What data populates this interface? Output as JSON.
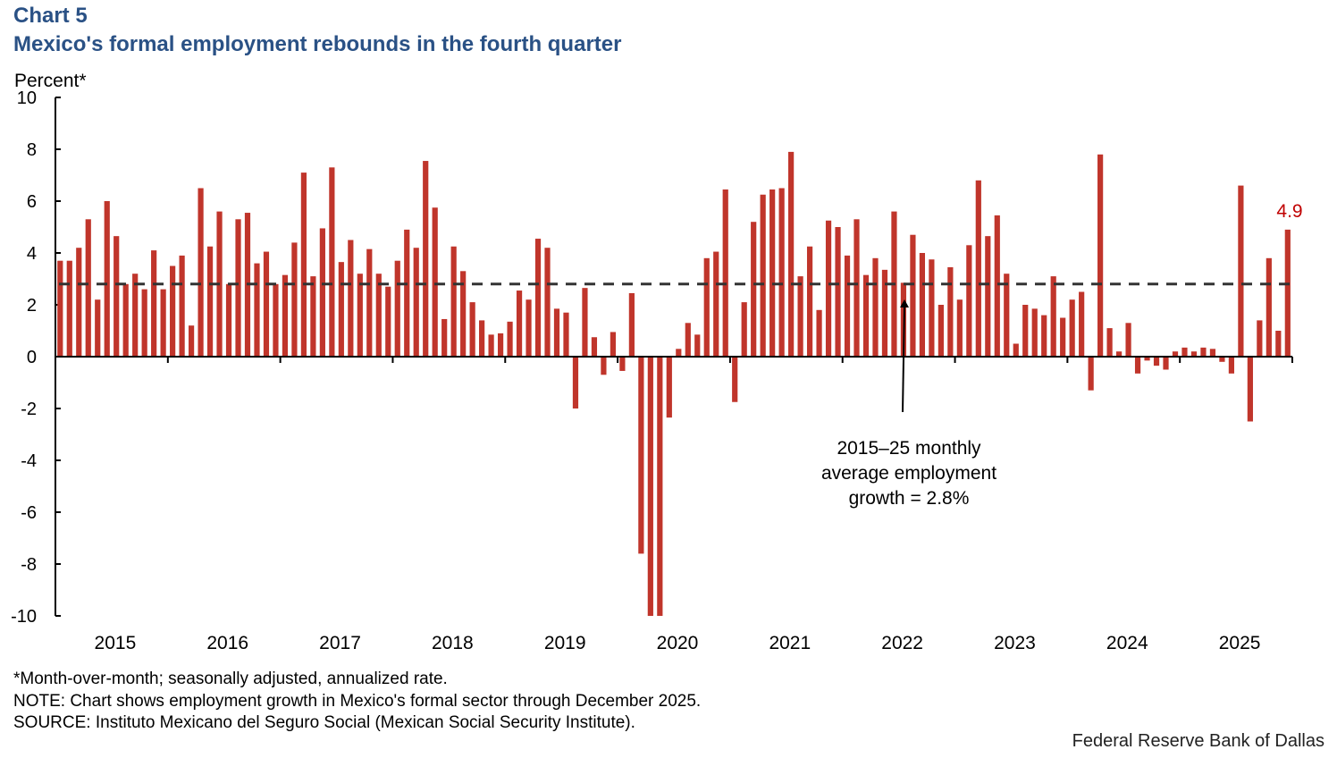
{
  "chart_label": "Chart 5",
  "title": "Mexico's formal employment rebounds in the fourth quarter",
  "notes": [
    "*Month-over-month; seasonally adjusted, annualized rate.",
    "NOTE: Chart shows employment growth in Mexico's formal sector through December 2025.",
    "SOURCE: Instituto Mexicano del Seguro Social (Mexican Social Security Institute)."
  ],
  "credit": "Federal Reserve Bank of Dallas",
  "chart_data": {
    "type": "bar",
    "ylabel": "Percent*",
    "ylim": [
      -10,
      10
    ],
    "yticks": [
      "10",
      "8",
      "6",
      "4",
      "2",
      "0",
      "-2",
      "-4",
      "-6",
      "-8",
      "-10"
    ],
    "xtick_labels": [
      "2015",
      "2016",
      "2017",
      "2018",
      "2019",
      "2020",
      "2021",
      "2022",
      "2023",
      "2024",
      "2025"
    ],
    "frequency": "monthly, Jan 2015 – Dec 2025",
    "bar_color": "#c0352b",
    "reference_line": {
      "value": 2.8,
      "style": "dashed",
      "color": "#333333"
    },
    "annotation": [
      "2015–25 monthly",
      "average employment",
      "growth = 2.8%"
    ],
    "last_value_label": {
      "text": "4.9",
      "color": "#c00000"
    },
    "values": [
      3.7,
      3.7,
      4.2,
      5.3,
      2.2,
      6.0,
      4.65,
      2.8,
      3.2,
      2.6,
      4.1,
      2.6,
      3.5,
      3.9,
      1.2,
      6.5,
      4.25,
      5.6,
      2.8,
      5.3,
      5.55,
      3.6,
      4.05,
      2.8,
      3.15,
      4.4,
      7.1,
      3.1,
      4.95,
      7.3,
      3.65,
      4.5,
      3.2,
      4.15,
      3.2,
      2.7,
      3.7,
      4.9,
      4.2,
      7.55,
      5.75,
      1.45,
      4.25,
      3.3,
      2.1,
      1.4,
      0.85,
      0.9,
      1.35,
      2.55,
      2.2,
      4.55,
      4.2,
      1.85,
      1.7,
      -2.0,
      2.65,
      0.75,
      -0.7,
      0.95,
      -0.55,
      2.45,
      -7.6,
      -10,
      -10,
      -2.35,
      0.3,
      1.3,
      0.85,
      3.8,
      4.05,
      6.45,
      -1.75,
      2.1,
      5.2,
      6.25,
      6.45,
      6.5,
      7.9,
      3.1,
      4.25,
      1.8,
      5.25,
      5.0,
      3.9,
      5.3,
      3.15,
      3.8,
      3.35,
      5.6,
      2.85,
      4.7,
      4.0,
      3.75,
      2.0,
      3.45,
      2.2,
      4.3,
      6.8,
      4.65,
      5.45,
      3.2,
      0.5,
      2.0,
      1.85,
      1.6,
      3.1,
      1.5,
      2.2,
      2.5,
      -1.3,
      7.8,
      1.1,
      0.2,
      1.3,
      -0.65,
      -0.15,
      -0.35,
      -0.5,
      0.2,
      0.35,
      0.2,
      0.35,
      0.3,
      -0.2,
      -0.65,
      6.6,
      -2.5,
      1.4,
      3.8,
      1.0,
      4.9
    ]
  }
}
